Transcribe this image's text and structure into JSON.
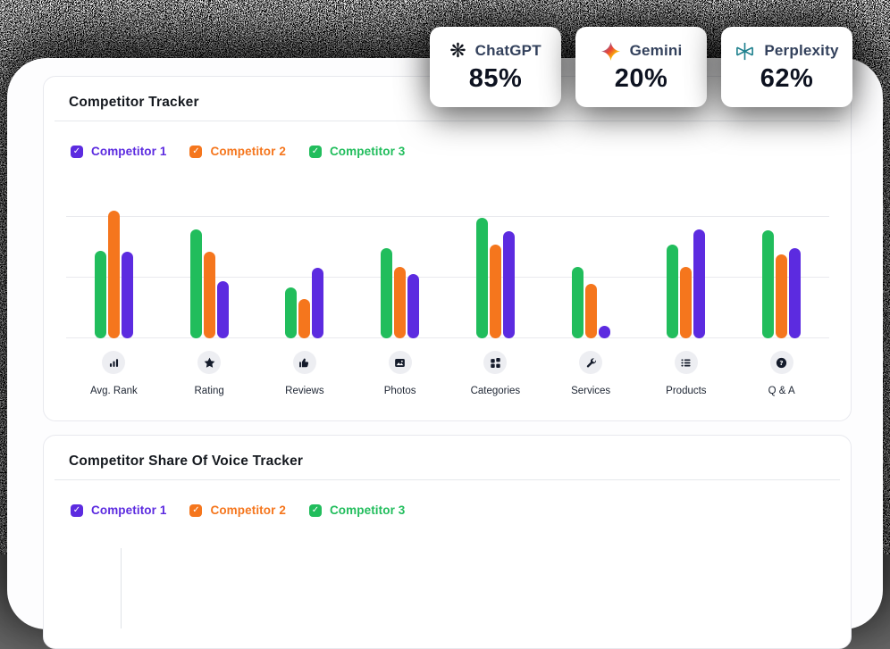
{
  "model_stats": [
    {
      "name": "ChatGPT",
      "value": "85%",
      "icon": "openai-icon",
      "icon_color": "#10141c"
    },
    {
      "name": "Gemini",
      "value": "20%",
      "icon": "gemini-icon",
      "icon_color": "multicolor"
    },
    {
      "name": "Perplexity",
      "value": "62%",
      "icon": "perplexity-icon",
      "icon_color": "#1f808e"
    }
  ],
  "competitors": [
    {
      "label": "Competitor 1",
      "color": "#5c2be0",
      "checked": true
    },
    {
      "label": "Competitor 2",
      "color": "#f5761d",
      "checked": true
    },
    {
      "label": "Competitor 3",
      "color": "#21bd5c",
      "checked": true
    }
  ],
  "competitor_tracker": {
    "title": "Competitor Tracker"
  },
  "share_of_voice": {
    "title": "Competitor Share Of Voice Tracker"
  },
  "chart_data": {
    "type": "bar",
    "title": "Competitor Tracker",
    "categories": [
      "Avg. Rank",
      "Rating",
      "Reviews",
      "Photos",
      "Categories",
      "Services",
      "Products",
      "Q & A"
    ],
    "category_icons": [
      "bar-chart-icon",
      "star-icon",
      "thumbs-up-icon",
      "photo-icon",
      "category-grid-icon",
      "wrench-icon",
      "list-icon",
      "question-icon"
    ],
    "series": [
      {
        "name": "Competitor 3",
        "color": "#21bd5c",
        "values": [
          72,
          90,
          42,
          74,
          99,
          59,
          77,
          89
        ]
      },
      {
        "name": "Competitor 2",
        "color": "#f5761d",
        "values": [
          105,
          71,
          32,
          59,
          77,
          45,
          59,
          69
        ]
      },
      {
        "name": "Competitor 1",
        "color": "#5c2be0",
        "values": [
          71,
          47,
          58,
          53,
          88,
          10,
          90,
          74
        ]
      }
    ],
    "ylim": [
      0,
      110
    ],
    "gridline_values": [
      0,
      50,
      100
    ],
    "legend_position": "top",
    "grid": "horizontal"
  }
}
